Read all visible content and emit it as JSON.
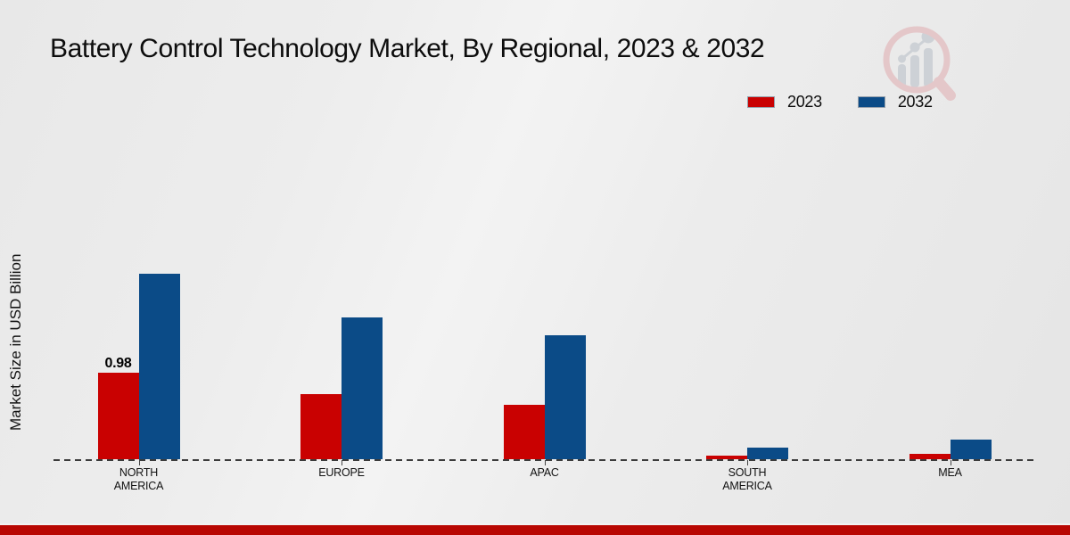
{
  "header": {
    "title": "Battery Control Technology Market, By Regional, 2023 & 2032"
  },
  "legend": {
    "position": "top-right",
    "items": [
      {
        "label": "2023",
        "color": "#c90101"
      },
      {
        "label": "2032",
        "color": "#0b4b87"
      }
    ]
  },
  "logo": {
    "name": "magnifier-bar-chart-logo",
    "ring_color": "#e4c6c8",
    "bars_color": "#ccd0d5"
  },
  "chart_data": {
    "type": "bar",
    "title": "Battery Control Technology Market, By Regional, 2023 & 2032",
    "xlabel": "",
    "ylabel": "Market Size in USD Billion",
    "categories": [
      "NORTH AMERICA",
      "EUROPE",
      "APAC",
      "SOUTH AMERICA",
      "MEA"
    ],
    "category_lines": [
      [
        "NORTH",
        "AMERICA"
      ],
      [
        "EUROPE"
      ],
      [
        "APAC"
      ],
      [
        "SOUTH",
        "AMERICA"
      ],
      [
        "MEA"
      ]
    ],
    "series": [
      {
        "name": "2023",
        "color": "#c90101",
        "values": [
          0.98,
          0.74,
          0.62,
          0.04,
          0.06
        ]
      },
      {
        "name": "2032",
        "color": "#0b4b87",
        "values": [
          2.1,
          1.61,
          1.4,
          0.13,
          0.22
        ]
      }
    ],
    "annotations": [
      {
        "series_index": 0,
        "category_index": 0,
        "text": "0.98"
      }
    ],
    "ylim": [
      0,
      2.3
    ],
    "grid": false,
    "baseline_style": "dashed",
    "legend_position": "top-right",
    "accent_bottom_bar_color": "#b80702"
  }
}
